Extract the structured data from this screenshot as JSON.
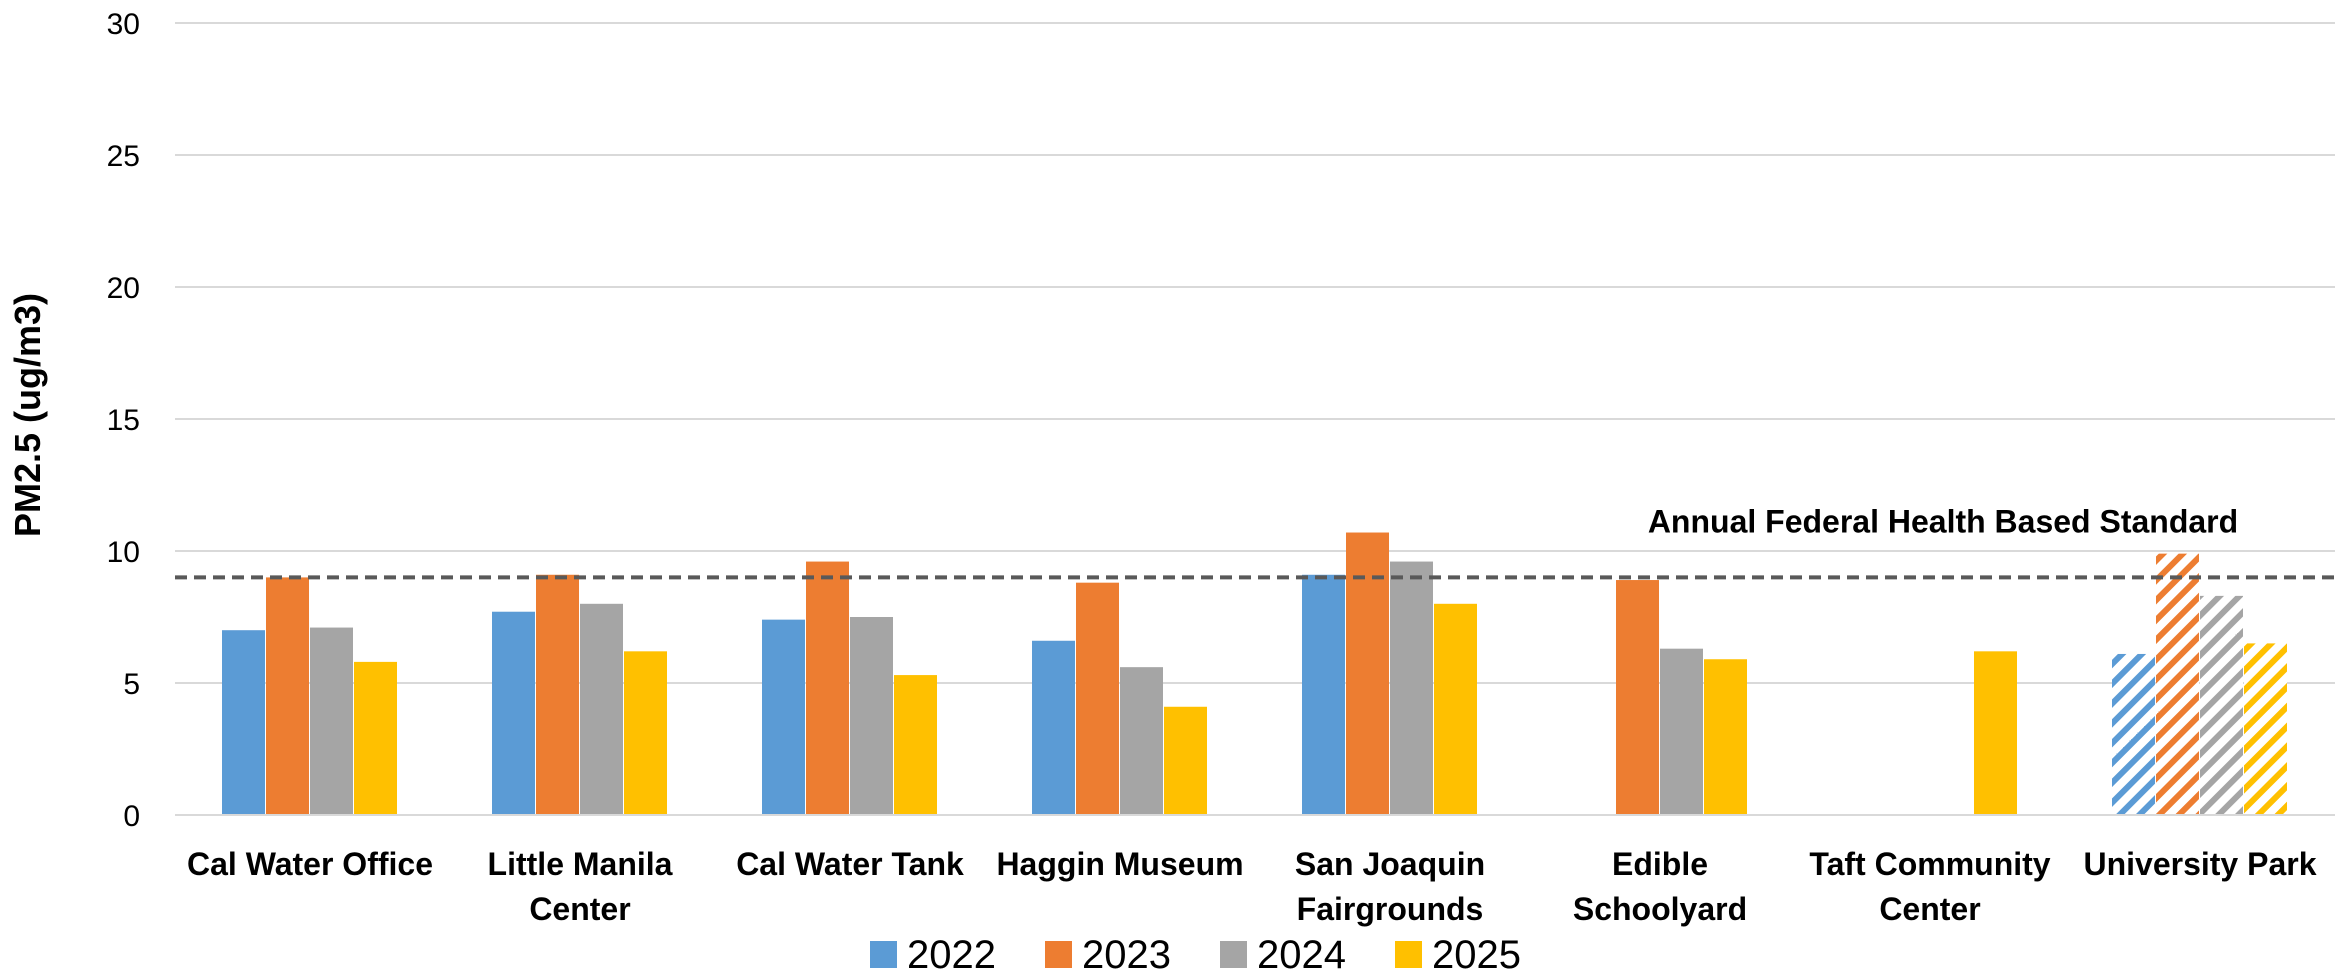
{
  "chart_data": {
    "type": "bar",
    "ylabel": "PM2.5 (ug/m3)",
    "ylim": [
      0,
      30
    ],
    "yticks": [
      0,
      5,
      10,
      15,
      20,
      25,
      30
    ],
    "grid": "horizontal",
    "legend_position": "bottom",
    "categories": [
      [
        "Cal Water Office"
      ],
      [
        "Little Manila",
        "Center"
      ],
      [
        "Cal Water Tank"
      ],
      [
        "Haggin Museum"
      ],
      [
        "San Joaquin",
        "Fairgrounds"
      ],
      [
        "Edible",
        "Schoolyard"
      ],
      [
        "Taft Community",
        "Center"
      ],
      [
        "University Park"
      ]
    ],
    "series": [
      {
        "name": "2022",
        "color": "#5B9BD5",
        "values": [
          7.0,
          7.7,
          7.4,
          6.6,
          9.1,
          null,
          null,
          6.1
        ]
      },
      {
        "name": "2023",
        "color": "#ED7D31",
        "values": [
          9.0,
          9.1,
          9.6,
          8.8,
          10.7,
          8.9,
          null,
          9.9
        ]
      },
      {
        "name": "2024",
        "color": "#A5A5A5",
        "values": [
          7.1,
          8.0,
          7.5,
          5.6,
          9.6,
          6.3,
          null,
          8.3
        ]
      },
      {
        "name": "2025",
        "color": "#FFC000",
        "values": [
          5.8,
          6.2,
          5.3,
          4.1,
          8.0,
          5.9,
          6.2,
          6.5
        ]
      }
    ],
    "hatched_categories": [
      "University Park"
    ],
    "reference_line": {
      "value": 9.0,
      "label": "Annual Federal Health Based Standard",
      "style": "dashed",
      "color": "#595959"
    }
  }
}
